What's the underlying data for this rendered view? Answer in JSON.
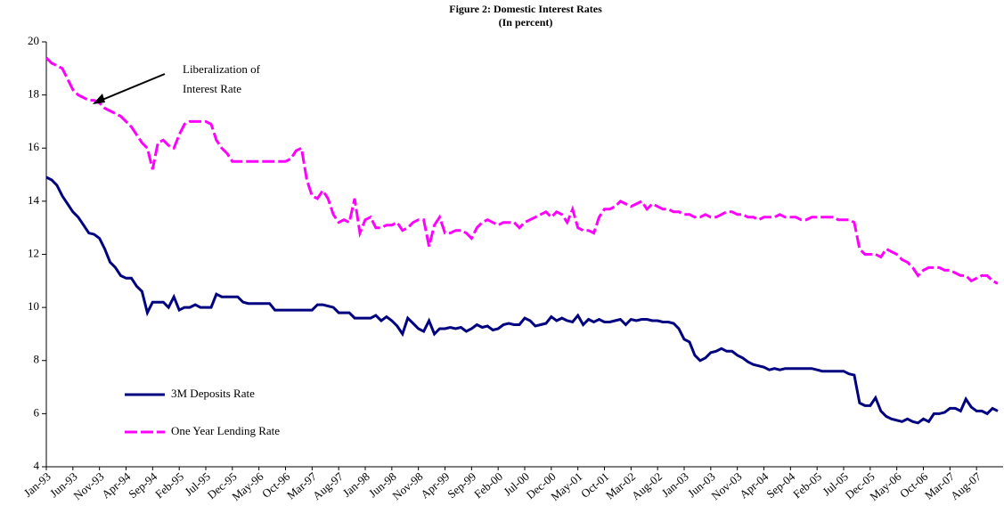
{
  "chart_data": {
    "type": "line",
    "title": "Figure 2: Domestic Interest Rates",
    "subtitle": "(In percent)",
    "annotation": [
      "Liberalization of",
      "Interest Rate"
    ],
    "categories": [
      "Jan-93",
      null,
      null,
      null,
      null,
      "Jun-93",
      null,
      null,
      null,
      null,
      "Nov-93",
      null,
      null,
      null,
      null,
      "Apr-94",
      null,
      null,
      null,
      null,
      "Sep-94",
      null,
      null,
      null,
      null,
      "Feb-95",
      null,
      null,
      null,
      null,
      "Jul-95",
      null,
      null,
      null,
      null,
      "Dec-95",
      null,
      null,
      null,
      null,
      "May-96",
      null,
      null,
      null,
      null,
      "Oct-96",
      null,
      null,
      null,
      null,
      "Mar-97",
      null,
      null,
      null,
      null,
      "Aug-97",
      null,
      null,
      null,
      null,
      "Jan-98",
      null,
      null,
      null,
      null,
      "Jun-98",
      null,
      null,
      null,
      null,
      "Nov-98",
      null,
      null,
      null,
      null,
      "Apr-99",
      null,
      null,
      null,
      null,
      "Sep-99",
      null,
      null,
      null,
      null,
      "Feb-00",
      null,
      null,
      null,
      null,
      "Jul-00",
      null,
      null,
      null,
      null,
      "Dec-00",
      null,
      null,
      null,
      null,
      "May-01",
      null,
      null,
      null,
      null,
      "Oct-01",
      null,
      null,
      null,
      null,
      "Mar-02",
      null,
      null,
      null,
      null,
      "Aug-02",
      null,
      null,
      null,
      null,
      "Jan-03",
      null,
      null,
      null,
      null,
      "Jun-03",
      null,
      null,
      null,
      null,
      "Nov-03",
      null,
      null,
      null,
      null,
      "Apr-04",
      null,
      null,
      null,
      null,
      "Sep-04",
      null,
      null,
      null,
      null,
      "Feb-05",
      null,
      null,
      null,
      null,
      "Jul-05",
      null,
      null,
      null,
      null,
      "Dec-05",
      null,
      null,
      null,
      null,
      "May-06",
      null,
      null,
      null,
      null,
      "Oct-06",
      null,
      null,
      null,
      null,
      "Mar-07",
      null,
      null,
      null,
      null,
      "Aug-07",
      null,
      null,
      null,
      null
    ],
    "series": [
      {
        "name": "3M Deposits Rate",
        "color": "#000080",
        "dashed": false,
        "values": [
          14.9,
          14.8,
          14.6,
          14.2,
          13.9,
          13.6,
          13.4,
          13.1,
          12.8,
          12.75,
          12.6,
          12.2,
          11.7,
          11.5,
          11.2,
          11.1,
          11.1,
          10.8,
          10.6,
          9.8,
          10.2,
          10.2,
          10.2,
          10.0,
          10.4,
          9.9,
          10.0,
          10.0,
          10.1,
          10.0,
          10.0,
          10.0,
          10.5,
          10.4,
          10.4,
          10.4,
          10.4,
          10.2,
          10.15,
          10.15,
          10.15,
          10.15,
          10.15,
          9.9,
          9.9,
          9.9,
          9.9,
          9.9,
          9.9,
          9.9,
          9.9,
          10.1,
          10.1,
          10.05,
          10.0,
          9.8,
          9.8,
          9.8,
          9.6,
          9.6,
          9.6,
          9.6,
          9.7,
          9.5,
          9.65,
          9.5,
          9.3,
          9.0,
          9.6,
          9.4,
          9.2,
          9.1,
          9.5,
          9.0,
          9.2,
          9.2,
          9.25,
          9.2,
          9.25,
          9.1,
          9.2,
          9.35,
          9.25,
          9.3,
          9.15,
          9.2,
          9.35,
          9.4,
          9.35,
          9.35,
          9.6,
          9.5,
          9.3,
          9.35,
          9.4,
          9.65,
          9.5,
          9.6,
          9.5,
          9.45,
          9.7,
          9.35,
          9.55,
          9.45,
          9.55,
          9.45,
          9.45,
          9.5,
          9.55,
          9.35,
          9.55,
          9.5,
          9.55,
          9.55,
          9.5,
          9.5,
          9.45,
          9.45,
          9.4,
          9.2,
          8.8,
          8.7,
          8.2,
          8.0,
          8.1,
          8.3,
          8.35,
          8.45,
          8.35,
          8.35,
          8.2,
          8.1,
          7.95,
          7.85,
          7.8,
          7.75,
          7.65,
          7.7,
          7.65,
          7.7,
          7.7,
          7.7,
          7.7,
          7.7,
          7.7,
          7.65,
          7.6,
          7.6,
          7.6,
          7.6,
          7.6,
          7.5,
          7.45,
          6.4,
          6.3,
          6.3,
          6.6,
          6.1,
          5.9,
          5.8,
          5.75,
          5.7,
          5.8,
          5.7,
          5.65,
          5.8,
          5.7,
          6.0,
          6.0,
          6.05,
          6.2,
          6.2,
          6.1,
          6.55,
          6.25,
          6.1,
          6.1,
          6.0,
          6.2,
          6.1
        ]
      },
      {
        "name": "One Year Lending Rate",
        "color": "#ff00ff",
        "dashed": true,
        "values": [
          19.4,
          19.2,
          19.1,
          19.0,
          18.6,
          18.2,
          18.0,
          17.9,
          17.8,
          17.8,
          17.7,
          17.5,
          17.4,
          17.3,
          17.2,
          17.0,
          16.8,
          16.5,
          16.2,
          16.0,
          15.2,
          16.2,
          16.3,
          16.1,
          16.0,
          16.5,
          16.9,
          17.0,
          17.0,
          17.0,
          17.0,
          16.9,
          16.3,
          16.0,
          15.8,
          15.5,
          15.5,
          15.5,
          15.5,
          15.5,
          15.5,
          15.5,
          15.5,
          15.5,
          15.5,
          15.5,
          15.6,
          15.9,
          16.0,
          14.8,
          14.2,
          14.1,
          14.4,
          14.1,
          13.5,
          13.2,
          13.3,
          13.2,
          14.1,
          12.8,
          13.3,
          13.4,
          13.0,
          13.0,
          13.1,
          13.1,
          13.2,
          12.9,
          13.0,
          13.2,
          13.3,
          13.3,
          12.3,
          13.1,
          13.4,
          12.8,
          12.8,
          12.9,
          12.9,
          12.8,
          12.6,
          13.0,
          13.2,
          13.3,
          13.2,
          13.1,
          13.2,
          13.2,
          13.2,
          13.0,
          13.2,
          13.3,
          13.4,
          13.5,
          13.6,
          13.4,
          13.6,
          13.5,
          13.2,
          13.7,
          13.0,
          12.9,
          12.9,
          12.8,
          13.4,
          13.7,
          13.7,
          13.8,
          14.0,
          13.9,
          13.8,
          13.9,
          14.0,
          13.7,
          13.9,
          13.8,
          13.7,
          13.7,
          13.6,
          13.6,
          13.5,
          13.5,
          13.4,
          13.4,
          13.5,
          13.4,
          13.4,
          13.5,
          13.6,
          13.6,
          13.5,
          13.5,
          13.4,
          13.4,
          13.3,
          13.4,
          13.4,
          13.4,
          13.5,
          13.4,
          13.4,
          13.4,
          13.3,
          13.3,
          13.4,
          13.4,
          13.4,
          13.4,
          13.4,
          13.3,
          13.3,
          13.3,
          13.2,
          12.2,
          12.0,
          12.0,
          12.0,
          11.9,
          12.2,
          12.1,
          12.0,
          11.8,
          11.7,
          11.5,
          11.2,
          11.4,
          11.5,
          11.5,
          11.5,
          11.4,
          11.4,
          11.3,
          11.2,
          11.2,
          11.0,
          11.1,
          11.2,
          11.2,
          11.0,
          10.9
        ]
      }
    ],
    "ylim": [
      4,
      20
    ],
    "yticks": [
      4,
      6,
      8,
      10,
      12,
      14,
      16,
      18,
      20
    ],
    "grid": false,
    "legend": "lower left"
  }
}
